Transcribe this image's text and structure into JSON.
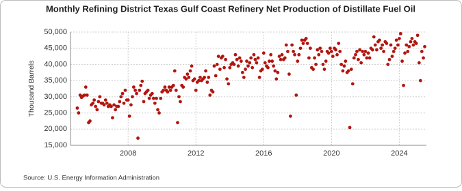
{
  "chart_data": {
    "type": "scatter",
    "title": "Monthly Refining District Texas Gulf Coast Refinery Net Production of Distillate Fuel Oil",
    "y_label": "Thousand Barrels",
    "source": "Source: U.S. Energy Information Administration",
    "color": "#b3150f",
    "grid": true,
    "xlim": [
      2004.6,
      2025.6
    ],
    "xticks": [
      2008,
      2012,
      2016,
      2020,
      2024
    ],
    "ylim": [
      15000,
      50000
    ],
    "yticks": [
      {
        "value": 15000,
        "label": "15,000"
      },
      {
        "value": 20000,
        "label": "20,000"
      },
      {
        "value": 25000,
        "label": "25,000"
      },
      {
        "value": 30000,
        "label": "30,000"
      },
      {
        "value": 35000,
        "label": "35,000"
      },
      {
        "value": 40000,
        "label": "40,000"
      },
      {
        "value": 45000,
        "label": "45,000"
      },
      {
        "value": 50000,
        "label": "50,000"
      }
    ],
    "x": [
      2005,
      2005.08,
      2005.17,
      2005.25,
      2005.33,
      2005.42,
      2005.5,
      2005.58,
      2005.67,
      2005.75,
      2005.83,
      2005.92,
      2006,
      2006.08,
      2006.17,
      2006.25,
      2006.33,
      2006.42,
      2006.5,
      2006.58,
      2006.67,
      2006.75,
      2006.83,
      2006.92,
      2007,
      2007.08,
      2007.17,
      2007.25,
      2007.33,
      2007.42,
      2007.5,
      2007.58,
      2007.67,
      2007.75,
      2007.83,
      2007.92,
      2008,
      2008.08,
      2008.17,
      2008.25,
      2008.33,
      2008.42,
      2008.5,
      2008.58,
      2008.67,
      2008.75,
      2008.83,
      2008.92,
      2009,
      2009.08,
      2009.17,
      2009.25,
      2009.33,
      2009.42,
      2009.5,
      2009.58,
      2009.67,
      2009.75,
      2009.83,
      2009.92,
      2010,
      2010.08,
      2010.17,
      2010.25,
      2010.33,
      2010.42,
      2010.5,
      2010.58,
      2010.67,
      2010.75,
      2010.83,
      2010.92,
      2011,
      2011.08,
      2011.17,
      2011.25,
      2011.33,
      2011.42,
      2011.5,
      2011.58,
      2011.67,
      2011.75,
      2011.83,
      2011.92,
      2012,
      2012.08,
      2012.17,
      2012.25,
      2012.33,
      2012.42,
      2012.5,
      2012.58,
      2012.67,
      2012.75,
      2012.83,
      2012.92,
      2013,
      2013.08,
      2013.17,
      2013.25,
      2013.33,
      2013.42,
      2013.5,
      2013.58,
      2013.67,
      2013.75,
      2013.83,
      2013.92,
      2014,
      2014.08,
      2014.17,
      2014.25,
      2014.33,
      2014.42,
      2014.5,
      2014.58,
      2014.67,
      2014.75,
      2014.83,
      2014.92,
      2015,
      2015.08,
      2015.17,
      2015.25,
      2015.33,
      2015.42,
      2015.5,
      2015.58,
      2015.67,
      2015.75,
      2015.83,
      2015.92,
      2016,
      2016.08,
      2016.17,
      2016.25,
      2016.33,
      2016.42,
      2016.5,
      2016.58,
      2016.67,
      2016.75,
      2016.83,
      2016.92,
      2017,
      2017.08,
      2017.17,
      2017.25,
      2017.33,
      2017.42,
      2017.5,
      2017.58,
      2017.67,
      2017.75,
      2017.83,
      2017.92,
      2018,
      2018.08,
      2018.17,
      2018.25,
      2018.33,
      2018.42,
      2018.5,
      2018.58,
      2018.67,
      2018.75,
      2018.83,
      2018.92,
      2019,
      2019.08,
      2019.17,
      2019.25,
      2019.33,
      2019.42,
      2019.5,
      2019.58,
      2019.67,
      2019.75,
      2019.83,
      2019.92,
      2020,
      2020.08,
      2020.17,
      2020.25,
      2020.33,
      2020.42,
      2020.5,
      2020.58,
      2020.67,
      2020.75,
      2020.83,
      2020.92,
      2021,
      2021.08,
      2021.17,
      2021.25,
      2021.33,
      2021.42,
      2021.5,
      2021.58,
      2021.67,
      2021.75,
      2021.83,
      2021.92,
      2022,
      2022.08,
      2022.17,
      2022.25,
      2022.33,
      2022.42,
      2022.5,
      2022.58,
      2022.67,
      2022.75,
      2022.83,
      2022.92,
      2023,
      2023.08,
      2023.17,
      2023.25,
      2023.33,
      2023.42,
      2023.5,
      2023.58,
      2023.67,
      2023.75,
      2023.83,
      2023.92,
      2024,
      2024.08,
      2024.17,
      2024.25,
      2024.33,
      2024.42,
      2024.5,
      2024.58,
      2024.67,
      2024.75,
      2024.83,
      2024.92,
      2025,
      2025.08,
      2025.17,
      2025.25,
      2025.33,
      2025.42,
      2025.5
    ],
    "values": [
      26500,
      25000,
      30500,
      29800,
      30200,
      30500,
      33000,
      30500,
      22000,
      22500,
      27500,
      28000,
      29000,
      27000,
      26000,
      28500,
      30000,
      28000,
      28000,
      27500,
      29000,
      28000,
      27000,
      27500,
      27000,
      23500,
      27500,
      26000,
      27000,
      27000,
      28500,
      30000,
      31000,
      28000,
      32000,
      29000,
      29000,
      24000,
      27500,
      30000,
      33000,
      32000,
      31000,
      17200,
      32000,
      33500,
      34800,
      28500,
      31000,
      31500,
      32000,
      29500,
      30500,
      31000,
      29500,
      28000,
      29500,
      26000,
      25000,
      29500,
      31500,
      32000,
      33000,
      32000,
      31500,
      33000,
      32000,
      33000,
      33500,
      38000,
      32000,
      22000,
      30000,
      28500,
      33500,
      33000,
      36000,
      35500,
      37000,
      36000,
      38000,
      39500,
      35000,
      35500,
      32000,
      34500,
      35000,
      36000,
      35000,
      35500,
      36000,
      38000,
      34500,
      36000,
      30500,
      32000,
      31500,
      39500,
      36500,
      40000,
      42500,
      38500,
      42000,
      42500,
      39000,
      41500,
      35500,
      34000,
      39000,
      40000,
      40500,
      40000,
      43000,
      41500,
      39500,
      42000,
      41000,
      37500,
      36000,
      38500,
      41000,
      39500,
      40500,
      42000,
      39000,
      43000,
      41500,
      40500,
      42000,
      36000,
      38000,
      38500,
      43500,
      40500,
      39500,
      39000,
      41000,
      43000,
      41000,
      39500,
      38000,
      35500,
      37500,
      42500,
      41500,
      43000,
      41500,
      42000,
      46000,
      44000,
      37000,
      24000,
      46000,
      44000,
      43000,
      30500,
      41000,
      43000,
      45000,
      47500,
      46500,
      47500,
      48000,
      46500,
      42000,
      45000,
      39000,
      38500,
      42000,
      40000,
      44500,
      43000,
      45000,
      44000,
      40000,
      38500,
      41000,
      44000,
      43500,
      45000,
      44000,
      42500,
      45000,
      44500,
      43000,
      46500,
      44000,
      40000,
      38000,
      39500,
      41000,
      37500,
      38000,
      20500,
      38500,
      34000,
      42000,
      43000,
      44000,
      41500,
      44500,
      40500,
      44000,
      43000,
      44000,
      42000,
      43500,
      42000,
      45000,
      44500,
      48500,
      46000,
      44500,
      47000,
      47500,
      45000,
      46000,
      44000,
      47000,
      46500,
      40000,
      41500,
      46000,
      42500,
      44000,
      45000,
      47500,
      46000,
      48000,
      49500,
      41000,
      33500,
      43500,
      46000,
      44000,
      45500,
      47000,
      48000,
      46000,
      47000,
      46500,
      49000,
      40500,
      35000,
      44000,
      42000,
      45500
    ]
  }
}
